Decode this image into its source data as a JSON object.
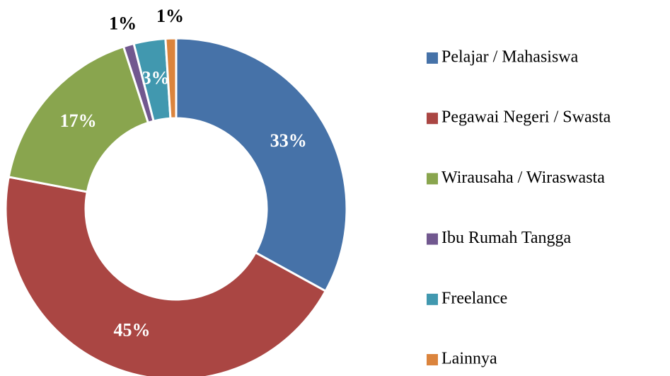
{
  "chart_data": {
    "type": "donut",
    "categories": [
      "Pelajar / Mahasiswa",
      "Pegawai Negeri / Swasta",
      "Wirausaha / Wiraswasta",
      "Ibu Rumah Tangga",
      "Freelance",
      "Lainnya"
    ],
    "values": [
      33,
      45,
      17,
      1,
      3,
      1
    ],
    "value_labels": [
      "33%",
      "45%",
      "17%",
      "1%",
      "3%",
      "1%"
    ],
    "colors": [
      "#4672a8",
      "#aa4643",
      "#89a54e",
      "#71588f",
      "#4198af",
      "#db843d"
    ],
    "legend": "right"
  }
}
